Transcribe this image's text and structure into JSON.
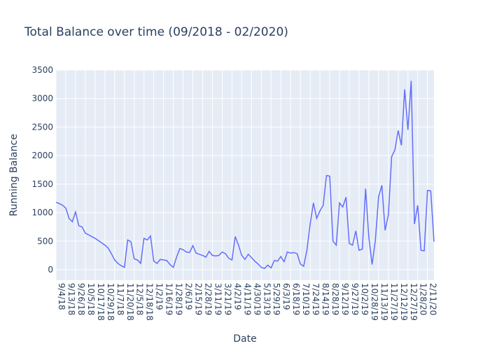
{
  "chart_data": {
    "type": "line",
    "title": "Total Balance over time (09/2018 - 02/2020)",
    "x_label": "Date",
    "y_label": "Running Balance",
    "categories": [
      "9/4/18",
      null,
      null,
      "9/13/18",
      null,
      null,
      "9/26/18",
      null,
      null,
      "10/5/18",
      null,
      null,
      "10/17/18",
      null,
      null,
      "10/29/18",
      null,
      null,
      "11/7/18",
      null,
      null,
      "11/20/18",
      null,
      null,
      "12/5/18",
      null,
      null,
      "12/18/18",
      null,
      null,
      "1/2/19",
      null,
      null,
      "1/16/19",
      null,
      null,
      "1/28/19",
      null,
      null,
      "2/6/19",
      null,
      null,
      "2/15/19",
      null,
      null,
      "2/28/19",
      null,
      null,
      "3/11/19",
      null,
      null,
      "3/21/19",
      null,
      null,
      "4/2/19",
      null,
      null,
      "4/11/19",
      null,
      null,
      "4/30/19",
      null,
      null,
      "5/13/19",
      null,
      null,
      "5/29/19",
      null,
      null,
      "6/3/19",
      null,
      null,
      "6/18/19",
      null,
      null,
      "7/10/19",
      null,
      null,
      "7/24/19",
      null,
      null,
      "8/14/19",
      null,
      null,
      "8/28/19",
      null,
      null,
      "9/12/19",
      null,
      null,
      "9/27/19",
      null,
      null,
      "10/2/19",
      null,
      null,
      "10/28/19",
      null,
      null,
      "11/13/19",
      null,
      null,
      "11/27/19",
      null,
      null,
      "12/12/19",
      null,
      null,
      "12/27/19",
      null,
      null,
      "1/28/20",
      null,
      null,
      "2/11/20",
      null,
      null
    ],
    "series": [
      {
        "color": "#636efa",
        "values": [
          1180,
          1160,
          1130,
          1080,
          900,
          840,
          1010,
          770,
          750,
          640,
          610,
          580,
          550,
          510,
          470,
          430,
          380,
          280,
          170,
          110,
          70,
          40,
          520,
          490,
          190,
          170,
          110,
          550,
          520,
          590,
          150,
          110,
          180,
          170,
          160,
          90,
          40,
          220,
          370,
          350,
          310,
          300,
          420,
          290,
          270,
          250,
          220,
          320,
          250,
          240,
          250,
          310,
          280,
          200,
          170,
          580,
          430,
          250,
          180,
          270,
          210,
          150,
          100,
          40,
          20,
          80,
          30,
          160,
          150,
          230,
          140,
          310,
          290,
          300,
          280,
          100,
          60,
          340,
          800,
          1170,
          900,
          1030,
          1130,
          1650,
          1640,
          500,
          430,
          1170,
          1100,
          1270,
          460,
          430,
          680,
          340,
          360,
          1420,
          570,
          90,
          510,
          1280,
          1480,
          690,
          960,
          1980,
          2100,
          2440,
          2180,
          3160,
          2450,
          3310,
          800,
          1130,
          340,
          330,
          1390,
          1380,
          490
        ]
      }
    ],
    "ylim": [
      -184,
      3500
    ],
    "yticks": [
      0,
      500,
      1000,
      1500,
      2000,
      2500,
      3000,
      3500
    ],
    "grid": true
  }
}
